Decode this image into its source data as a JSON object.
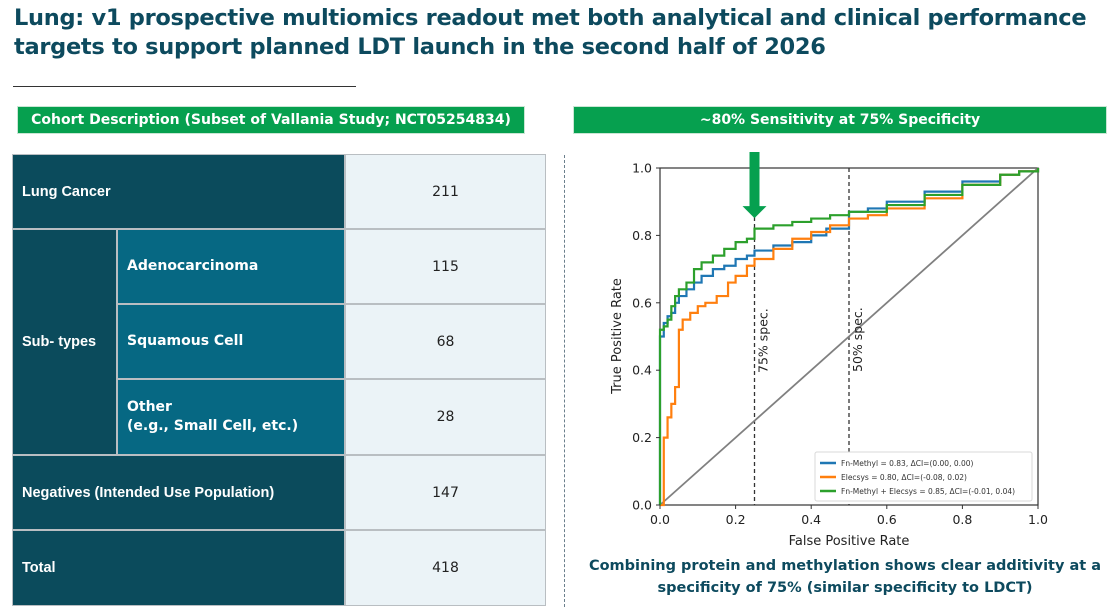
{
  "header": {
    "title_bold": "Lung:",
    "title_rest": " v1 prospective multiomics readout met both analytical and clinical performance targets to support planned LDT launch in the second half of 2026"
  },
  "left_banner": "Cohort Description (Subset of Vallania Study; NCT05254834)",
  "right_banner": "~80% Sensitivity at 75% Specificity",
  "cohort_table": {
    "rows": [
      {
        "label": "Lung Cancer",
        "value": "211"
      },
      {
        "group": "Sub- types",
        "label": "Adenocarcinoma",
        "value": "115"
      },
      {
        "group": "Sub- types",
        "label": "Squamous Cell",
        "value": "68"
      },
      {
        "group": "Sub- types",
        "label": "Other",
        "label2": "(e.g., Small Cell, etc.)",
        "value": "28"
      },
      {
        "label": "Negatives (Intended Use Population)",
        "value": "147"
      },
      {
        "label": "Total",
        "value": "418"
      }
    ],
    "subtypes_label": "Sub- types"
  },
  "footer": "Combining protein and methylation shows clear additivity at a specificity of 75% (similar specificity to LDCT)",
  "colors": {
    "brand_green": "#06a04f",
    "navy_text": "#0d4a5e",
    "dark_cell": "#0b4b5c",
    "mid_cell": "#066883",
    "value_cell": "#ebf3f7"
  },
  "chart_data": {
    "type": "line",
    "title": "",
    "xlabel": "False Positive Rate",
    "ylabel": "True Positive Rate",
    "xlim": [
      0.0,
      1.0
    ],
    "ylim": [
      0.0,
      1.0
    ],
    "xticks": [
      "0.0",
      "0.2",
      "0.4",
      "0.6",
      "0.8",
      "1.0"
    ],
    "yticks": [
      "0.0",
      "0.2",
      "0.4",
      "0.6",
      "0.8",
      "1.0"
    ],
    "grid": false,
    "legend_position": "bottom-right",
    "series": [
      {
        "name": "Fn-Methyl = 0.83, ΔCI=(0.00, 0.00)",
        "color": "#1f77b4",
        "x": [
          0.0,
          0.0,
          0.01,
          0.02,
          0.03,
          0.04,
          0.05,
          0.07,
          0.09,
          0.11,
          0.14,
          0.17,
          0.2,
          0.23,
          0.25,
          0.3,
          0.35,
          0.4,
          0.44,
          0.5,
          0.55,
          0.6,
          0.7,
          0.8,
          0.9,
          0.95,
          1.0
        ],
        "y": [
          0.0,
          0.5,
          0.54,
          0.56,
          0.57,
          0.6,
          0.62,
          0.64,
          0.66,
          0.68,
          0.7,
          0.71,
          0.73,
          0.74,
          0.755,
          0.77,
          0.78,
          0.8,
          0.82,
          0.87,
          0.88,
          0.9,
          0.93,
          0.96,
          0.98,
          0.99,
          1.0
        ]
      },
      {
        "name": "Elecsys = 0.80, ΔCI=(-0.08, 0.02)",
        "color": "#ff7f0e",
        "x": [
          0.0,
          0.0,
          0.01,
          0.01,
          0.02,
          0.03,
          0.04,
          0.05,
          0.05,
          0.06,
          0.08,
          0.1,
          0.12,
          0.15,
          0.18,
          0.2,
          0.23,
          0.25,
          0.3,
          0.35,
          0.4,
          0.45,
          0.5,
          0.55,
          0.6,
          0.7,
          0.8,
          0.9,
          0.95,
          1.0
        ],
        "y": [
          0.0,
          0.0,
          0.14,
          0.2,
          0.26,
          0.3,
          0.35,
          0.45,
          0.52,
          0.55,
          0.57,
          0.59,
          0.6,
          0.62,
          0.66,
          0.68,
          0.71,
          0.73,
          0.76,
          0.79,
          0.81,
          0.83,
          0.85,
          0.86,
          0.88,
          0.91,
          0.95,
          0.98,
          0.99,
          1.0
        ]
      },
      {
        "name": "Fn-Methyl + Elecsys = 0.85, ΔCI=(-0.01, 0.04)",
        "color": "#2ca02c",
        "x": [
          0.0,
          0.0,
          0.0,
          0.01,
          0.02,
          0.03,
          0.04,
          0.05,
          0.07,
          0.09,
          0.11,
          0.14,
          0.17,
          0.2,
          0.23,
          0.25,
          0.25,
          0.3,
          0.35,
          0.4,
          0.45,
          0.5,
          0.6,
          0.7,
          0.8,
          0.9,
          0.95,
          1.0
        ],
        "y": [
          0.0,
          0.33,
          0.52,
          0.53,
          0.55,
          0.59,
          0.62,
          0.64,
          0.66,
          0.7,
          0.72,
          0.74,
          0.76,
          0.78,
          0.79,
          0.8,
          0.82,
          0.83,
          0.84,
          0.85,
          0.86,
          0.87,
          0.89,
          0.92,
          0.95,
          0.98,
          0.99,
          1.0
        ]
      },
      {
        "name": "chance",
        "color": "#808080",
        "x": [
          0.0,
          1.0
        ],
        "y": [
          0.0,
          1.0
        ]
      }
    ],
    "reference_lines": [
      {
        "x": 0.25,
        "label": "75% spec."
      },
      {
        "x": 0.5,
        "label": "50% spec."
      }
    ],
    "annotation": {
      "type": "arrow",
      "x": 0.25,
      "y": 0.86,
      "color": "#06a04f"
    }
  }
}
